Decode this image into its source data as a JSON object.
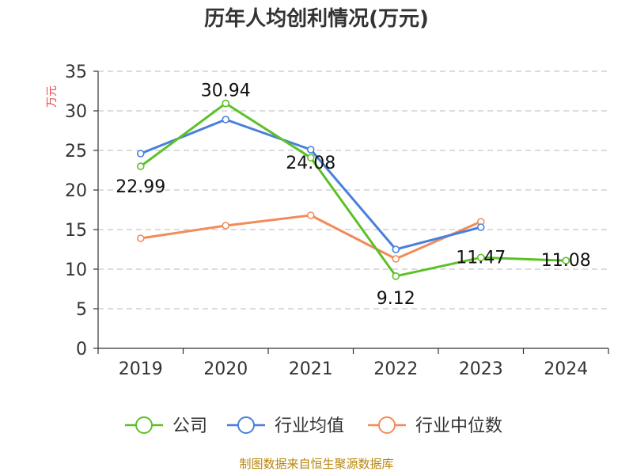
{
  "chart_data": {
    "type": "line",
    "title": "历年人均创利情况(万元)",
    "ylabel": "万元",
    "xlabel": "",
    "categories": [
      "2019",
      "2020",
      "2021",
      "2022",
      "2023",
      "2024"
    ],
    "ylim": [
      0,
      35
    ],
    "yticks": [
      0,
      5,
      10,
      15,
      20,
      25,
      30,
      35
    ],
    "grid": true,
    "legend_position": "bottom",
    "series": [
      {
        "name": "公司",
        "color": "#5cc128",
        "values": [
          22.99,
          30.94,
          24.08,
          9.12,
          11.47,
          11.08
        ],
        "labels": [
          "22.99",
          "30.94",
          "24.08",
          "9.12",
          "11.47",
          "11.08"
        ]
      },
      {
        "name": "行业均值",
        "color": "#4a7fdc",
        "values": [
          24.6,
          28.9,
          25.1,
          12.5,
          15.3,
          null
        ]
      },
      {
        "name": "行业中位数",
        "color": "#f28b5a",
        "values": [
          13.9,
          15.5,
          16.8,
          11.3,
          16.0,
          null
        ]
      }
    ]
  },
  "source": "制图数据来自恒生聚源数据库"
}
